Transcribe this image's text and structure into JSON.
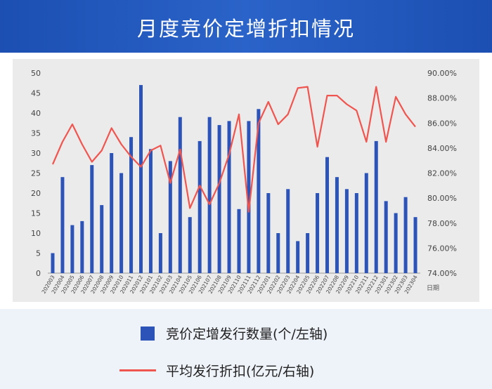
{
  "header": {
    "title": "月度竞价定增折扣情况"
  },
  "colors": {
    "header": "#1f55ba",
    "bar": "#2b53b8",
    "line": "#f0554f",
    "plot_bg": "#ebebeb"
  },
  "legend": {
    "bar_label": "竞价定增发行数量(个/左轴)",
    "line_label": "平均发行折扣(亿元/右轴)"
  },
  "chart_data": {
    "type": "bar",
    "xlabel": "日期",
    "categories": [
      "202003",
      "202004",
      "202005",
      "202006",
      "202007",
      "202008",
      "202009",
      "202010",
      "202011",
      "202012",
      "202101",
      "202102",
      "202103",
      "202104",
      "202105",
      "202106",
      "202107",
      "202108",
      "202109",
      "202110",
      "202111",
      "202112",
      "202201",
      "202202",
      "202203",
      "202204",
      "202205",
      "202206",
      "202207",
      "202208",
      "202209",
      "202210",
      "202211",
      "202212",
      "202301",
      "202302",
      "202303",
      "202304"
    ],
    "series": [
      {
        "name": "竞价定增发行数量(个/左轴)",
        "type": "bar",
        "axis": "left",
        "values": [
          5,
          24,
          12,
          13,
          27,
          17,
          30,
          25,
          34,
          47,
          31,
          10,
          28,
          39,
          14,
          33,
          39,
          37,
          38,
          16,
          38,
          41,
          20,
          10,
          21,
          8,
          10,
          20,
          29,
          24,
          21,
          20,
          25,
          33,
          18,
          15,
          19,
          14
        ]
      },
      {
        "name": "平均发行折扣(亿元/右轴)",
        "type": "line",
        "axis": "right",
        "values": [
          0.827,
          0.845,
          0.859,
          0.843,
          0.829,
          0.838,
          0.856,
          0.843,
          0.833,
          0.825,
          0.838,
          0.842,
          0.812,
          0.839,
          0.792,
          0.81,
          0.795,
          0.812,
          0.835,
          0.867,
          0.789,
          0.86,
          0.877,
          0.859,
          0.867,
          0.888,
          0.889,
          0.841,
          0.882,
          0.882,
          0.875,
          0.87,
          0.845,
          0.889,
          0.845,
          0.881,
          0.867,
          0.857
        ]
      }
    ],
    "ylim_left": [
      0,
      50
    ],
    "yticks_left": [
      "0",
      "5",
      "10",
      "15",
      "20",
      "25",
      "30",
      "35",
      "40",
      "45",
      "50"
    ],
    "ylim_right": [
      0.74,
      0.9
    ],
    "yticks_right": [
      "74.00%",
      "76.00%",
      "78.00%",
      "80.00%",
      "82.00%",
      "84.00%",
      "86.00%",
      "88.00%",
      "90.00%"
    ],
    "grid": false,
    "legend_position": "bottom"
  }
}
